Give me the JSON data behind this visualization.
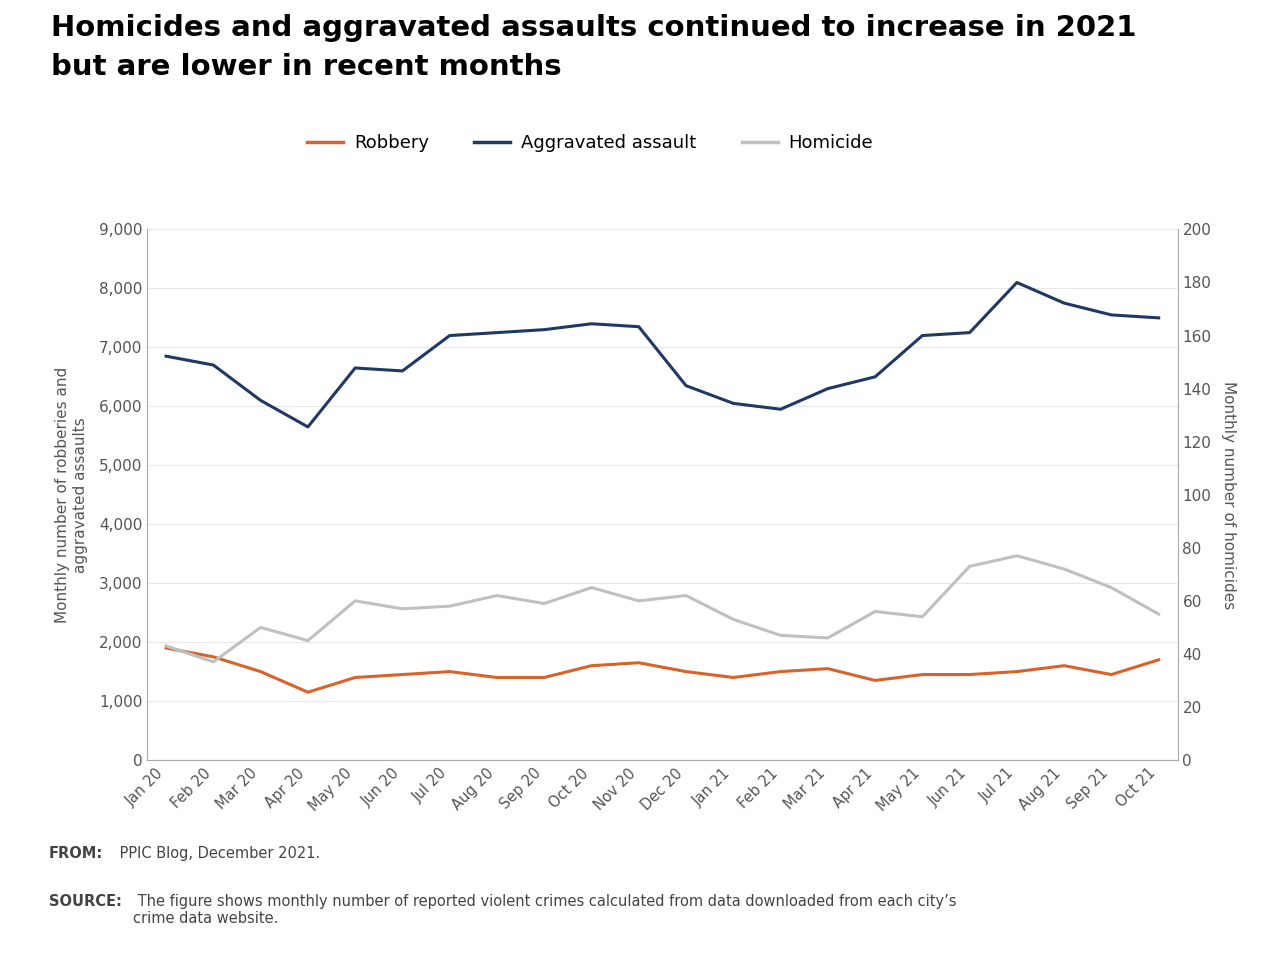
{
  "title_line1": "Homicides and aggravated assaults continued to increase in 2021",
  "title_line2": "but are lower in recent months",
  "title_fontsize": 21,
  "title_fontweight": "bold",
  "x_labels": [
    "Jan 20",
    "Feb 20",
    "Mar 20",
    "Apr 20",
    "May 20",
    "Jun 20",
    "Jul 20",
    "Aug 20",
    "Sep 20",
    "Oct 20",
    "Nov 20",
    "Dec 20",
    "Jan 21",
    "Feb 21",
    "Mar 21",
    "Apr 21",
    "May 21",
    "Jun 21",
    "Jul 21",
    "Aug 21",
    "Sep 21",
    "Oct 21"
  ],
  "robbery": [
    1900,
    1750,
    1500,
    1150,
    1400,
    1450,
    1500,
    1400,
    1400,
    1600,
    1650,
    1500,
    1400,
    1500,
    1550,
    1350,
    1450,
    1450,
    1500,
    1600,
    1450,
    1700
  ],
  "aggravated_assault": [
    6850,
    6700,
    6100,
    5650,
    6650,
    6600,
    7200,
    7250,
    7300,
    7400,
    7350,
    6350,
    6050,
    5950,
    6300,
    6500,
    7200,
    7250,
    8100,
    7750,
    7550,
    7500
  ],
  "homicide": [
    43,
    37,
    50,
    45,
    60,
    57,
    58,
    62,
    59,
    65,
    60,
    62,
    53,
    47,
    46,
    56,
    54,
    73,
    77,
    72,
    65,
    55
  ],
  "robbery_color": "#D9622B",
  "aggravated_assault_color": "#1F3864",
  "homicide_color": "#C0C0C0",
  "ylabel_left": "Monthly number of robberies and\naggravated assaults",
  "ylabel_right": "Monthly number of homicides",
  "ylim_left": [
    0,
    9000
  ],
  "ylim_right": [
    0,
    200
  ],
  "yticks_left": [
    0,
    1000,
    2000,
    3000,
    4000,
    5000,
    6000,
    7000,
    8000,
    9000
  ],
  "ytick_labels_left": [
    "0",
    "1,000",
    "2,000",
    "3,000",
    "4,000",
    "5,000",
    "6,000",
    "7,000",
    "8,000",
    "9,000"
  ],
  "yticks_right": [
    0,
    20,
    40,
    60,
    80,
    100,
    120,
    140,
    160,
    180,
    200
  ],
  "background_color": "#FFFFFF",
  "footer_bg_color": "#EBEBEB",
  "footer_text_from": "FROM:",
  "footer_text_from_body": " PPIC Blog, December 2021.",
  "footer_text_source": "SOURCE:",
  "footer_text_source_body": " The figure shows monthly number of reported violent crimes calculated from data downloaded from each city’s\ncrime data website.",
  "line_width": 2.2,
  "legend_fontsize": 13,
  "axis_color": "#AAAAAA",
  "tick_label_color": "#555555",
  "grid_color": "#E8E8E8"
}
